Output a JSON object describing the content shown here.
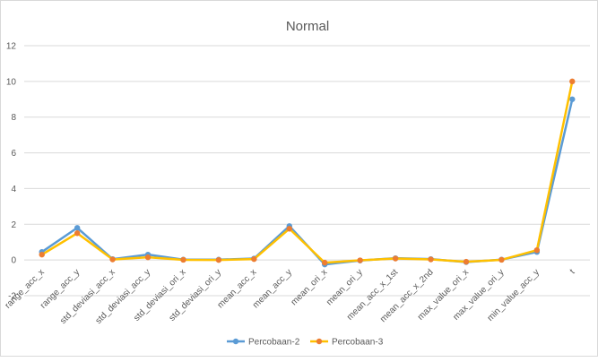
{
  "chart_data": {
    "type": "line",
    "title": "Normal",
    "xlabel": "",
    "ylabel": "",
    "ylim": [
      -2,
      12
    ],
    "yticks": [
      -2,
      0,
      2,
      4,
      6,
      8,
      10,
      12
    ],
    "grid": true,
    "legend_position": "bottom",
    "categories": [
      "range_acc_x",
      "range_acc_y",
      "std_deviasi_acc_x",
      "std_deviasi_acc_y",
      "std_deviasi_ori_x",
      "std_deviasi_ori_y",
      "mean_acc_x",
      "mean_acc_y",
      "mean_ori_x",
      "mean_ori_y",
      "mean_acc_x_1st",
      "mean_acc_x_2nd",
      "max_value_ori_x",
      "max_value_ori_y",
      "min_value_acc_y",
      "t"
    ],
    "series": [
      {
        "name": "Percobaan-2",
        "color": "#5b9bd5",
        "values": [
          0.45,
          1.8,
          0.05,
          0.3,
          0.02,
          0.02,
          0.08,
          1.9,
          -0.25,
          -0.03,
          0.1,
          0.05,
          -0.12,
          0.02,
          0.45,
          9.0
        ]
      },
      {
        "name": "Percobaan-3",
        "color": "#f4b183",
        "line_color": "#ffc000",
        "marker_color": "#ed7d31",
        "values": [
          0.3,
          1.5,
          0.03,
          0.15,
          0.01,
          0.0,
          0.05,
          1.75,
          -0.15,
          -0.02,
          0.08,
          0.03,
          -0.1,
          0.01,
          0.55,
          10.0
        ]
      }
    ]
  }
}
